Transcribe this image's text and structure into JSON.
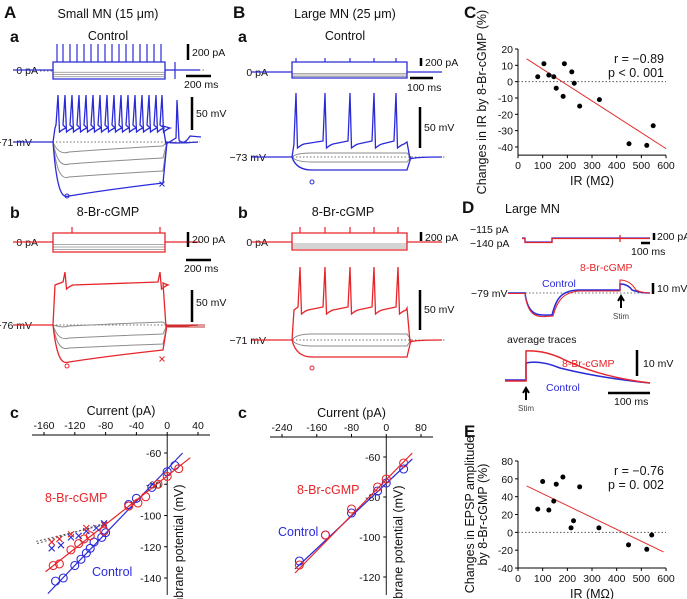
{
  "colors": {
    "control": "#2a2ad8",
    "cgmp": "#e6252a",
    "grey": "#8c8c8c",
    "fit": "#e03030"
  },
  "panel_A": {
    "letter": "A",
    "title": "Small MN (15 μm)",
    "a": {
      "letter": "a",
      "title": "Control",
      "current_label": "0 pA",
      "voltage_label": "−71 mV",
      "scale_current": "200 pA",
      "scale_time": "200 ms",
      "scale_voltage": "50 mV"
    },
    "b": {
      "letter": "b",
      "title": "8-Br-cGMP",
      "current_label": "0 pA",
      "voltage_label": "−76 mV",
      "scale_current": "200 pA",
      "scale_time": "200 ms",
      "scale_voltage": "50 mV"
    },
    "c": {
      "letter": "c"
    }
  },
  "panel_B": {
    "letter": "B",
    "title": "Large MN (25 μm)",
    "a": {
      "letter": "a",
      "title": "Control",
      "current_label": "0 pA",
      "voltage_label": "−73 mV",
      "scale_current": "200 pA",
      "scale_time": "100 ms",
      "scale_voltage": "50 mV"
    },
    "b": {
      "letter": "b",
      "title": "8-Br-cGMP",
      "current_label": "0 pA",
      "voltage_label": "−71 mV",
      "scale_current": "200 pA",
      "scale_time": "",
      "scale_voltage": "50 mV"
    },
    "c": {
      "letter": "c"
    }
  },
  "panel_C": {
    "letter": "C"
  },
  "panel_D": {
    "letter": "D",
    "title": "Large MN",
    "current_labels": [
      "−115 pA",
      "−140 pA"
    ],
    "scale_current": "200 pA",
    "scale_time": "100 ms",
    "voltage_label": "−79 mV",
    "scale_voltage": "10 mV",
    "series": [
      "8-Br-cGMP",
      "Control"
    ],
    "stim": "Stim",
    "avg_title": "average traces",
    "avg_scale_voltage": "10 mV",
    "avg_scale_time": "100 ms",
    "avg_series": [
      "8-Br-cGMP",
      "Control"
    ],
    "avg_stim": "Stim"
  },
  "panel_E": {
    "letter": "E"
  },
  "chart_data": [
    {
      "id": "A_c",
      "type": "scatter",
      "xlabel": "Current (pA)",
      "ylabel": "Membrane potential (mV)",
      "xlim": [
        -160,
        40
      ],
      "ylim": [
        -150,
        -55
      ],
      "xticks": [
        -160,
        -120,
        -80,
        -40,
        0,
        40
      ],
      "yticks": [
        -60,
        -80,
        -100,
        -120,
        -140
      ],
      "series": [
        {
          "name": "Control",
          "marker": "circle",
          "points": [
            [
              10,
              -68
            ],
            [
              0,
              -72
            ],
            [
              -20,
              -82
            ],
            [
              -40,
              -89
            ],
            [
              -50,
              -93
            ],
            [
              -80,
              -111
            ],
            [
              -85,
              -114
            ],
            [
              -95,
              -117
            ],
            [
              -100,
              -121
            ],
            [
              -105,
              -124
            ],
            [
              -112,
              -128
            ],
            [
              -120,
              -132
            ],
            [
              -135,
              -140
            ],
            [
              -145,
              -142
            ]
          ],
          "fit": [
            [
              -155,
              -150
            ],
            [
              20,
              -60
            ]
          ]
        },
        {
          "name": "8-Br-cGMP",
          "marker": "circle",
          "points": [
            [
              15,
              -70
            ],
            [
              0,
              -75
            ],
            [
              -12,
              -80
            ],
            [
              -28,
              -88
            ],
            [
              -38,
              -92
            ],
            [
              -50,
              -94
            ],
            [
              -82,
              -110
            ],
            [
              -100,
              -113
            ],
            [
              -108,
              -115
            ],
            [
              -115,
              -118
            ],
            [
              -125,
              -122
            ],
            [
              -140,
              -131
            ],
            [
              -148,
              -132
            ]
          ],
          "fit": [
            [
              -158,
              -136
            ],
            [
              30,
              -63
            ]
          ]
        },
        {
          "name": "",
          "marker": "cross",
          "color": "control",
          "points": [
            [
              -82,
              -105
            ],
            [
              -92,
              -108
            ],
            [
              -105,
              -110
            ],
            [
              -115,
              -113
            ],
            [
              -125,
              -114
            ],
            [
              -138,
              -119
            ],
            [
              -150,
              -121
            ]
          ]
        },
        {
          "name": "",
          "marker": "cross",
          "color": "cgmp",
          "points": [
            [
              -82,
              -106
            ],
            [
              -105,
              -108
            ],
            [
              -125,
              -112
            ],
            [
              -140,
              -115
            ],
            [
              -150,
              -117
            ]
          ]
        }
      ]
    },
    {
      "id": "B_c",
      "type": "scatter",
      "xlabel": "Current (pA)",
      "ylabel": "Membrane potential (mV)",
      "xlim": [
        -240,
        80
      ],
      "ylim": [
        -130,
        -55
      ],
      "xticks": [
        -240,
        -160,
        -80,
        0,
        80
      ],
      "yticks": [
        -60,
        -80,
        -100,
        -120
      ],
      "series": [
        {
          "name": "Control",
          "points": [
            [
              -200,
              -112
            ],
            [
              -140,
              -99
            ],
            [
              -80,
              -88
            ],
            [
              -20,
              -77
            ],
            [
              0,
              -73
            ],
            [
              40,
              -66
            ]
          ],
          "fit": [
            [
              -210,
              -116
            ],
            [
              60,
              -61
            ]
          ]
        },
        {
          "name": "8-Br-cGMP",
          "points": [
            [
              -200,
              -114
            ],
            [
              -140,
              -99
            ],
            [
              -80,
              -86
            ],
            [
              -20,
              -75
            ],
            [
              0,
              -71
            ],
            [
              40,
              -63
            ]
          ],
          "fit": [
            [
              -210,
              -118
            ],
            [
              60,
              -58
            ]
          ]
        }
      ]
    },
    {
      "id": "C",
      "type": "scatter",
      "xlabel": "IR (MΩ)",
      "ylabel": "Changes in IR by 8-Br-cGMP (%)",
      "xlim": [
        0,
        600
      ],
      "ylim": [
        -45,
        20
      ],
      "xticks": [
        0,
        100,
        200,
        300,
        400,
        500,
        600
      ],
      "yticks": [
        20,
        10,
        0,
        -10,
        -20,
        -30,
        -40
      ],
      "stats": [
        "r = −0.89",
        "p  <  0. 001"
      ],
      "points": [
        [
          80,
          3
        ],
        [
          105,
          11
        ],
        [
          125,
          4
        ],
        [
          145,
          3
        ],
        [
          155,
          -4
        ],
        [
          183,
          -9
        ],
        [
          188,
          11
        ],
        [
          218,
          6
        ],
        [
          228,
          -1
        ],
        [
          250,
          -15
        ],
        [
          330,
          -11
        ],
        [
          450,
          -38
        ],
        [
          522,
          -39
        ],
        [
          548,
          -27
        ]
      ],
      "fit": [
        [
          35,
          14
        ],
        [
          600,
          -41
        ]
      ]
    },
    {
      "id": "E",
      "type": "scatter",
      "xlabel": "IR (MΩ)",
      "ylabel": [
        "Changes in EPSP amplitude",
        "by 8-Br-cGMP (%)"
      ],
      "xlim": [
        0,
        600
      ],
      "ylim": [
        -40,
        80
      ],
      "xticks": [
        0,
        100,
        200,
        300,
        400,
        500,
        600
      ],
      "yticks": [
        80,
        60,
        40,
        20,
        0,
        -20,
        -40
      ],
      "stats": [
        "r = −0.76",
        "p  =  0. 002"
      ],
      "points": [
        [
          80,
          26
        ],
        [
          100,
          57
        ],
        [
          125,
          25
        ],
        [
          145,
          35
        ],
        [
          155,
          54
        ],
        [
          182,
          62
        ],
        [
          215,
          5
        ],
        [
          225,
          13
        ],
        [
          250,
          51
        ],
        [
          328,
          5
        ],
        [
          448,
          -14
        ],
        [
          522,
          -19
        ],
        [
          542,
          -3
        ]
      ],
      "fit": [
        [
          35,
          52
        ],
        [
          590,
          -22
        ]
      ]
    }
  ]
}
